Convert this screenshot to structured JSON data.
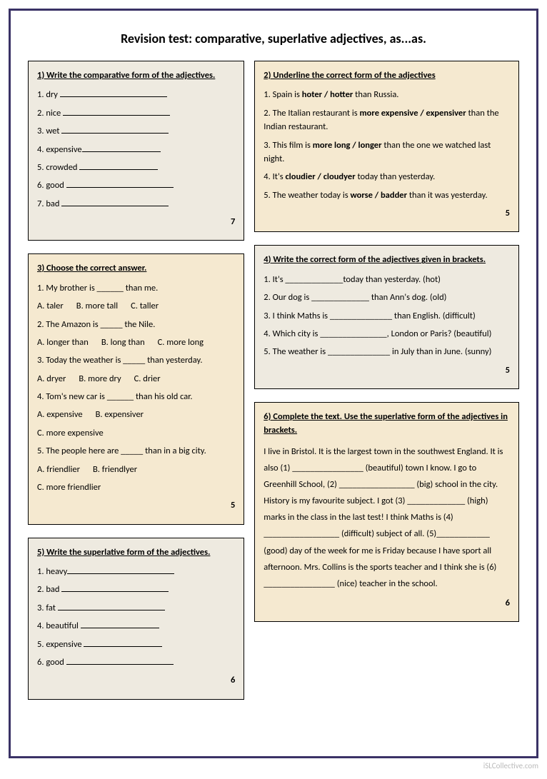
{
  "title": "Revision test: comparative, superlative adjectives, as...as.",
  "ex1": {
    "heading": "1) Write the comparative form of the adjectives.",
    "items": [
      "1. dry",
      "2. nice",
      "3. wet",
      "4. expensive",
      "5. crowded",
      "6.  good",
      "7.  bad"
    ],
    "score": "7"
  },
  "ex2": {
    "heading": "2) Underline the correct form of the adjectives",
    "q1a": "1. Spain is  ",
    "q1b": "hoter / hotter",
    "q1c": " than Russia.",
    "q2a": "2. The Italian restaurant is ",
    "q2b": "more expensive / expensiver",
    "q2c": "  than the Indian restaurant.",
    "q3a": "3. This film is ",
    "q3b": "more long / longer",
    "q3c": " than the one we watched last night.",
    "q4a": "4. It's ",
    "q4b": "cloudier / cloudyer",
    "q4c": " today than yesterday.",
    "q5a": "5. The weather today is ",
    "q5b": "worse / badder",
    "q5c": " than it was yesterday.",
    "score": "5"
  },
  "ex3": {
    "heading": "3) Choose the correct answer.",
    "q1": "1. My brother is ______ than me.",
    "q1a": "A. taler",
    "q1b": "B. more tall",
    "q1c": "C. taller",
    "q2": "2. The Amazon is _____ the Nile.",
    "q2a": "A. longer than",
    "q2b": "B. long than",
    "q2c": "C. more long",
    "q3": "3. Today the weather is _____ than yesterday.",
    "q3a": "A. dryer",
    "q3b": "B. more dry",
    "q3c": "C. drier",
    "q4": "4. Tom's new car is ______ than his old car.",
    "q4a": "A. expensive",
    "q4b": "B.  expensiver",
    "q4c": "C. more expensive",
    "q5": "5. The people here are _____ than in a big city.",
    "q5a": "A. friendlier",
    "q5b": "B. friendlyer",
    "q5c": "C. more friendlier",
    "score": "5"
  },
  "ex4": {
    "heading": "4) Write the correct form of the adjectives given in brackets.",
    "q1": "1. It's _____________today than yesterday. (hot)",
    "q2": "2. Our dog is _____________ than Ann's dog. (old)",
    "q3": "3. I think Maths is ______________ than English. (difficult)",
    "q4": "4. Which city is _______________, London or Paris? (beautiful)",
    "q5": "5. The weather is ______________ in July than in June. (sunny)",
    "score": "5"
  },
  "ex5": {
    "heading": "5) Write the superlative form of the adjectives.",
    "items": [
      "1. heavy",
      "2. bad",
      "3. fat",
      "4. beautiful",
      "5. expensive",
      "6. good"
    ],
    "score": "6"
  },
  "ex6": {
    "heading": "6) Complete the text. Use the superlative form of the adjectives in brackets.",
    "text": "I live in Bristol. It is the largest town in the southwest England. It is also (1) ________________ (beautiful) town I know. I go to Greenhill School, (2) _________________ (big) school in the city. History is my favourite subject. I got (3) _____________ (high) marks in the class in the last test! I think Maths is (4) _________________ (difficult) subject of all. (5)____________ (good) day of the week for me is Friday because I have sport all afternoon. Mrs. Collins is the sports teacher and I think she is (6) ________________ (nice) teacher in the school.",
    "score": "6"
  },
  "watermark": "iSLCollective.com",
  "colors": {
    "border": "#3a3266",
    "boxOdd": "#eeeae0",
    "boxEven": "#f5e9d0"
  }
}
